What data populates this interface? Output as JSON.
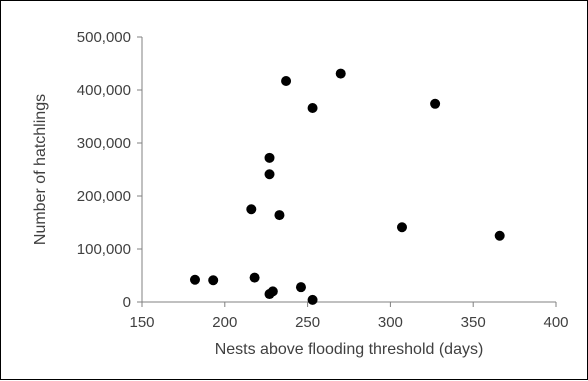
{
  "chart_data": {
    "type": "scatter",
    "title": "",
    "xlabel": "Nests above flooding threshold (days)",
    "ylabel": "Number of hatchlings",
    "xlim": [
      150,
      400
    ],
    "ylim": [
      0,
      500000
    ],
    "x_ticks": [
      150,
      200,
      250,
      300,
      350,
      400
    ],
    "y_ticks": [
      0,
      100000,
      200000,
      300000,
      400000,
      500000
    ],
    "x_tick_labels": [
      "150",
      "200",
      "250",
      "300",
      "350",
      "400"
    ],
    "y_tick_labels": [
      "0",
      "100,000",
      "200,000",
      "300,000",
      "400,000",
      "500,000"
    ],
    "grid": false,
    "legend": "none",
    "marker_color": "#000000",
    "axis_color": "#808080",
    "points": [
      {
        "x": 182,
        "y": 42000
      },
      {
        "x": 193,
        "y": 41000
      },
      {
        "x": 216,
        "y": 175000
      },
      {
        "x": 218,
        "y": 46000
      },
      {
        "x": 227,
        "y": 272000
      },
      {
        "x": 227,
        "y": 241000
      },
      {
        "x": 227,
        "y": 15000
      },
      {
        "x": 229,
        "y": 20000
      },
      {
        "x": 233,
        "y": 164000
      },
      {
        "x": 237,
        "y": 417000
      },
      {
        "x": 246,
        "y": 28000
      },
      {
        "x": 253,
        "y": 366000
      },
      {
        "x": 253,
        "y": 4000
      },
      {
        "x": 270,
        "y": 431000
      },
      {
        "x": 307,
        "y": 141000
      },
      {
        "x": 327,
        "y": 374000
      },
      {
        "x": 366,
        "y": 125000
      }
    ]
  }
}
